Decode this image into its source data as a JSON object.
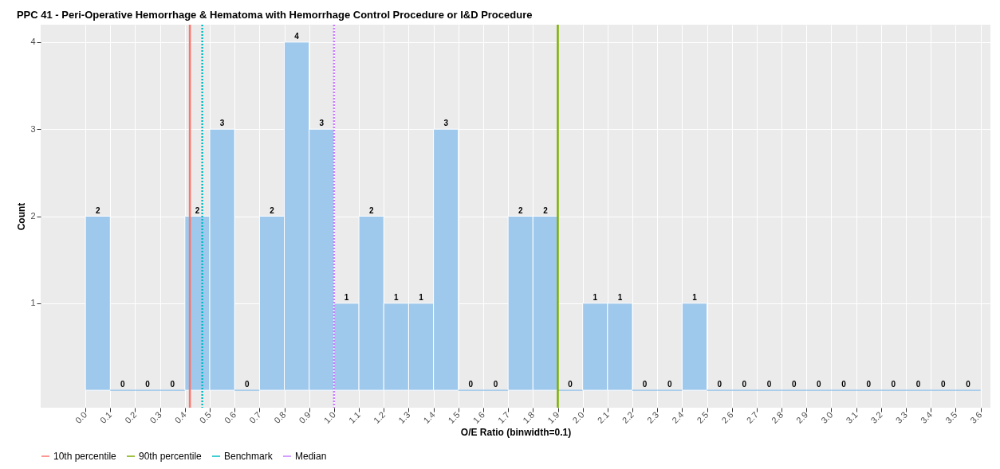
{
  "chart_data": {
    "type": "histogram",
    "title": "PPC 41 - Peri-Operative Hemorrhage & Hematoma with Hemorrhage Control Procedure or I&D Procedure",
    "xlabel": "O/E Ratio (binwidth=0.1)",
    "ylabel": "Count",
    "bins": [
      0.0,
      0.1,
      0.2,
      0.3,
      0.4,
      0.5,
      0.6,
      0.7,
      0.8,
      0.9,
      1.0,
      1.1,
      1.2,
      1.3,
      1.4,
      1.5,
      1.6,
      1.7,
      1.8,
      1.9,
      2.0,
      2.1,
      2.2,
      2.3,
      2.4,
      2.5,
      2.6,
      2.7,
      2.8,
      2.9,
      3.0,
      3.1,
      3.2,
      3.3,
      3.4,
      3.5,
      3.6
    ],
    "values": [
      2,
      0,
      0,
      0,
      2,
      3,
      0,
      2,
      4,
      3,
      1,
      2,
      1,
      1,
      3,
      0,
      0,
      2,
      2,
      0,
      1,
      1,
      0,
      0,
      1,
      0,
      0,
      0,
      0,
      0,
      0,
      0,
      0,
      0,
      0,
      0
    ],
    "color": "#9ec8ec",
    "data_labels": true,
    "xlim": [
      -0.18,
      3.64
    ],
    "ylim": [
      -0.2,
      4.2
    ],
    "xticks": [
      {
        "value": 0.0,
        "label": "0.0"
      },
      0.1,
      0.2,
      0.3,
      0.4,
      0.5,
      0.6,
      0.7,
      0.8,
      0.9,
      {
        "value": 1.0,
        "label": "1.0"
      },
      1.1,
      1.2,
      1.3,
      1.4,
      1.5,
      1.6,
      1.7,
      1.8,
      1.9,
      {
        "value": 2.0,
        "label": "2.0"
      },
      2.1,
      2.2,
      2.3,
      2.4,
      2.5,
      2.6,
      2.7,
      2.8,
      2.9,
      {
        "value": 3.0,
        "label": "3.0"
      },
      3.1,
      3.2,
      3.3,
      3.4,
      3.5,
      3.6
    ],
    "yticks": [
      1,
      2,
      3,
      4
    ],
    "ref_lines": [
      {
        "axis": "x",
        "value": 0.42,
        "label": "10th percentile",
        "color": "#f8766d",
        "line_style": "solid"
      },
      {
        "axis": "x",
        "value": 1.9,
        "label": "90th percentile",
        "color": "#7cae00",
        "line_style": "solid"
      },
      {
        "axis": "x",
        "value": 0.47,
        "label": "Benchmark",
        "color": "#00bfc4",
        "line_style": "dotted"
      },
      {
        "axis": "x",
        "value": 1.0,
        "label": "Median",
        "color": "#c77cff",
        "line_style": "dotted"
      }
    ],
    "grid": true,
    "legend": "bottom"
  }
}
